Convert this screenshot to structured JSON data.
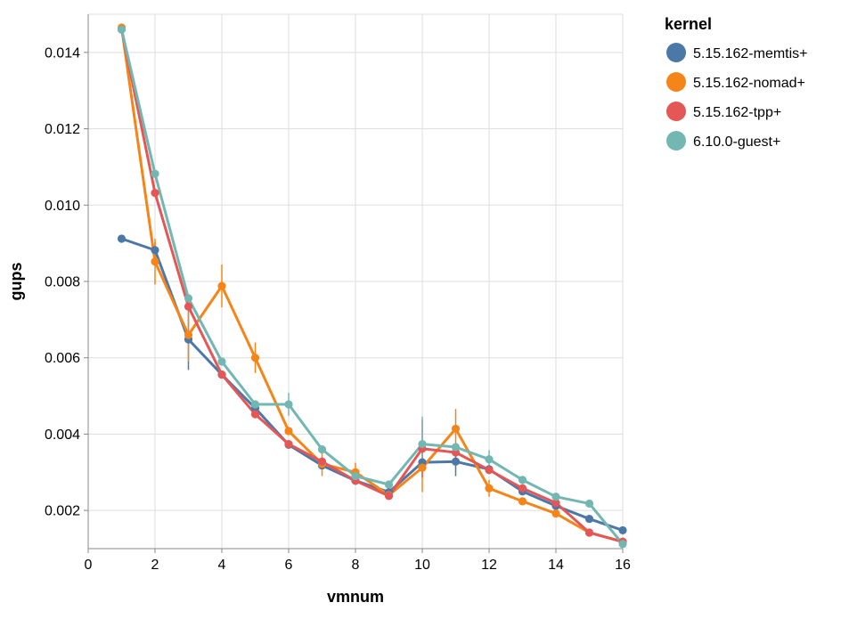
{
  "chart_data": {
    "type": "line",
    "xlabel": "vmnum",
    "ylabel": "gups",
    "xlim": [
      0,
      16
    ],
    "ylim": [
      0.001,
      0.015
    ],
    "x_ticks": [
      0,
      2,
      4,
      6,
      8,
      10,
      12,
      14,
      16
    ],
    "x_tick_labels": [
      "0",
      "2",
      "4",
      "6",
      "8",
      "10",
      "12",
      "14",
      "16"
    ],
    "y_ticks": [
      0.002,
      0.004,
      0.006,
      0.008,
      0.01,
      0.012,
      0.014
    ],
    "y_tick_labels": [
      "0.002",
      "0.004",
      "0.006",
      "0.008",
      "0.010",
      "0.012",
      "0.014"
    ],
    "grid": true,
    "legend": {
      "title": "kernel",
      "placement": "right"
    },
    "x": [
      1,
      2,
      3,
      4,
      5,
      6,
      7,
      8,
      9,
      10,
      11,
      12,
      13,
      14,
      15,
      16
    ],
    "series": [
      {
        "name": "5.15.162-memtis+",
        "color": "#4c78a8",
        "values": [
          0.00912,
          0.00882,
          0.00648,
          0.00556,
          0.00468,
          0.00372,
          0.00318,
          0.00278,
          0.00248,
          0.00326,
          0.00328,
          0.00308,
          0.0025,
          0.00212,
          0.00178,
          0.00148
        ],
        "err_low": [
          null,
          0.00862,
          0.00568,
          null,
          null,
          null,
          null,
          null,
          null,
          null,
          0.0029,
          null,
          null,
          null,
          null,
          null
        ],
        "err_high": [
          null,
          0.00902,
          0.00728,
          null,
          null,
          null,
          null,
          null,
          null,
          null,
          0.00366,
          null,
          null,
          null,
          null,
          null
        ]
      },
      {
        "name": "5.15.162-nomad+",
        "color": "#f58518",
        "values": [
          0.01465,
          0.00852,
          0.0066,
          0.00788,
          0.006,
          0.00408,
          0.00322,
          0.003,
          0.0024,
          0.00312,
          0.00414,
          0.00258,
          0.00224,
          0.00192,
          0.00142,
          0.00118
        ],
        "err_low": [
          null,
          0.00792,
          0.0059,
          0.00732,
          0.0056,
          null,
          0.0029,
          0.00275,
          null,
          0.00248,
          0.00362,
          0.00236,
          null,
          null,
          null,
          null
        ],
        "err_high": [
          null,
          0.00912,
          0.0073,
          0.00844,
          0.0064,
          null,
          0.00354,
          0.00325,
          null,
          0.00376,
          0.00466,
          0.0028,
          null,
          null,
          null,
          null
        ]
      },
      {
        "name": "5.15.162-tpp+",
        "color": "#e45756",
        "values": [
          0.0146,
          0.01032,
          0.00734,
          0.00556,
          0.00452,
          0.00374,
          0.00328,
          0.00278,
          0.00238,
          0.00362,
          0.00352,
          0.00306,
          0.00258,
          0.0022,
          0.00142,
          0.00118
        ],
        "err_low": [
          null,
          null,
          null,
          null,
          null,
          null,
          null,
          null,
          null,
          0.00286,
          null,
          null,
          null,
          null,
          null,
          null
        ],
        "err_high": [
          null,
          null,
          null,
          null,
          null,
          null,
          null,
          null,
          null,
          0.00438,
          null,
          null,
          null,
          null,
          null,
          null
        ]
      },
      {
        "name": "6.10.0-guest+",
        "color": "#72b7b2",
        "values": [
          0.0146,
          0.01082,
          0.00756,
          0.0059,
          0.00478,
          0.00478,
          0.0036,
          0.0029,
          0.00268,
          0.00374,
          0.00366,
          0.00334,
          0.0028,
          0.00236,
          0.00218,
          0.00112
        ],
        "err_low": [
          null,
          null,
          null,
          null,
          null,
          0.00448,
          null,
          null,
          null,
          0.00308,
          null,
          0.0031,
          null,
          null,
          null,
          null
        ],
        "err_high": [
          null,
          null,
          null,
          null,
          null,
          0.00508,
          null,
          null,
          null,
          0.00446,
          null,
          0.00358,
          null,
          null,
          null,
          null
        ]
      }
    ]
  }
}
